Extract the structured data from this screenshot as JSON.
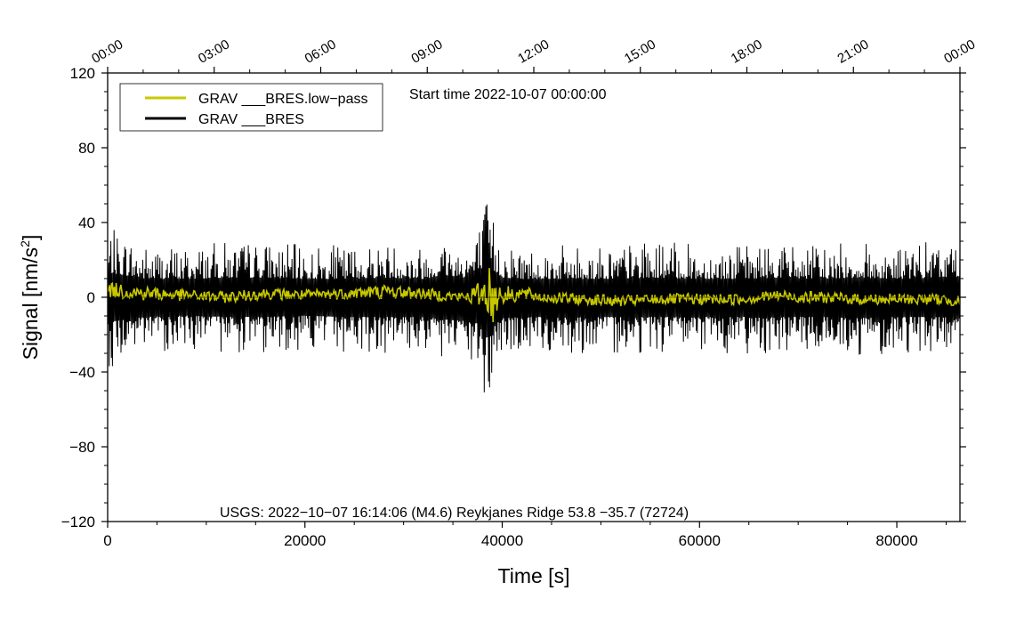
{
  "chart_data": {
    "type": "line",
    "title": "Start time 2022-10-07 00:00:00",
    "xlabel": "Time [s]",
    "ylabel_main": "Signal [nm/s",
    "ylabel_sup": "2",
    "ylabel_end": "]",
    "xlim": [
      0,
      86400
    ],
    "ylim": [
      -120,
      120
    ],
    "x_ticks": [
      0,
      20000,
      40000,
      60000,
      80000
    ],
    "x_tick_labels": [
      "0",
      "20000",
      "40000",
      "60000",
      "80000"
    ],
    "y_ticks": [
      -120,
      -80,
      -40,
      0,
      40,
      80,
      120
    ],
    "y_tick_labels": [
      "−120",
      "−80",
      "−40",
      "0",
      "40",
      "80",
      "120"
    ],
    "top_axis": {
      "ticks_s": [
        0,
        10800,
        21600,
        32400,
        43200,
        54000,
        64800,
        75600,
        86400
      ],
      "labels": [
        "00:00",
        "03:00",
        "06:00",
        "09:00",
        "12:00",
        "15:00",
        "18:00",
        "21:00",
        "00:00"
      ]
    },
    "annotation": "USGS: 2022−10−07 16:14:06 (M4.6) Reykjanes Ridge 53.8 −35.7 (72724)",
    "legend_position": "top-left",
    "series": [
      {
        "name": "GRAV ___BRES.low−pass",
        "color": "#c8c800",
        "x": [
          0,
          4000,
          8000,
          12000,
          16000,
          20000,
          24000,
          28000,
          32000,
          36000,
          38000,
          38500,
          39000,
          39500,
          40000,
          42000,
          44000,
          48000,
          52000,
          56000,
          60000,
          64000,
          68000,
          70000,
          72000,
          76000,
          80000,
          84000,
          86400
        ],
        "y": [
          4,
          2,
          1,
          0,
          2,
          1,
          2,
          3,
          2,
          0,
          2,
          6,
          -2,
          2,
          1,
          2,
          0,
          -1,
          -2,
          -1,
          -1,
          -1,
          1,
          0,
          0,
          -1,
          -1,
          -1,
          -2
        ],
        "envelope": [
          4,
          4,
          3,
          3,
          3,
          3,
          3,
          4,
          3,
          3,
          7,
          16,
          16,
          9,
          5,
          4,
          3,
          3,
          3,
          3,
          3,
          3,
          3,
          3,
          3,
          3,
          3,
          3,
          3
        ]
      },
      {
        "name": "GRAV ___BRES",
        "color": "#000000",
        "x": [
          0,
          4000,
          8000,
          12000,
          16000,
          20000,
          24000,
          28000,
          32000,
          34000,
          36000,
          37500,
          38200,
          38700,
          39200,
          40000,
          42000,
          46000,
          50000,
          56000,
          60000,
          64000,
          68000,
          72000,
          76000,
          80000,
          84000,
          86400
        ],
        "upper": [
          38,
          28,
          28,
          30,
          30,
          28,
          28,
          30,
          28,
          34,
          30,
          36,
          50,
          58,
          40,
          30,
          28,
          28,
          28,
          30,
          28,
          28,
          30,
          28,
          30,
          28,
          30,
          32
        ],
        "lower": [
          -38,
          -30,
          -28,
          -30,
          -30,
          -28,
          -30,
          -30,
          -30,
          -34,
          -36,
          -40,
          -58,
          -62,
          -44,
          -32,
          -30,
          -30,
          -30,
          -30,
          -30,
          -30,
          -30,
          -30,
          -32,
          -30,
          -30,
          -32
        ]
      }
    ]
  }
}
